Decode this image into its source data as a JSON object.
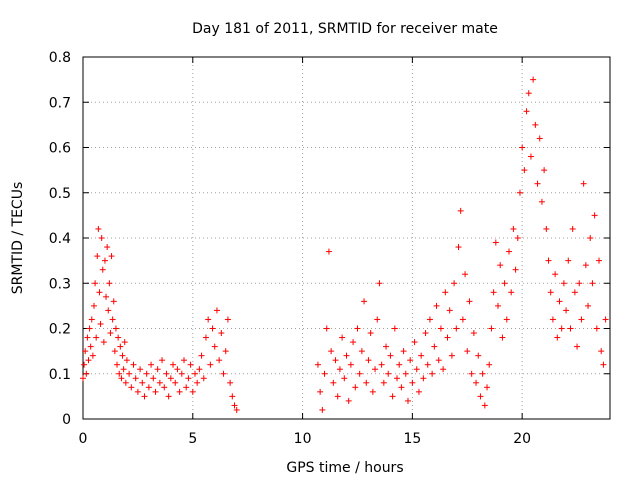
{
  "chart_data": {
    "type": "scatter",
    "title": "Day 181 of 2011, SRMTID for receiver mate",
    "xlabel": "GPS time / hours",
    "ylabel": "SRMTID / TECUs",
    "xlim": [
      0,
      24
    ],
    "ylim": [
      0,
      0.8
    ],
    "xticks": [
      0,
      5,
      10,
      15,
      20
    ],
    "xtick_labels": [
      "0",
      "5",
      "10",
      "15",
      "20"
    ],
    "yticks": [
      0,
      0.1,
      0.2,
      0.3,
      0.4,
      0.5,
      0.6,
      0.7,
      0.8
    ],
    "ytick_labels": [
      "0",
      "0.1",
      "0.2",
      "0.3",
      "0.4",
      "0.5",
      "0.6",
      "0.7",
      "0.8"
    ],
    "grid": true,
    "marker": "+",
    "color": "#ff0000",
    "series": [
      {
        "name": "SRMTID",
        "points": [
          [
            0.0,
            0.09
          ],
          [
            0.05,
            0.12
          ],
          [
            0.1,
            0.15
          ],
          [
            0.15,
            0.1
          ],
          [
            0.2,
            0.18
          ],
          [
            0.25,
            0.13
          ],
          [
            0.3,
            0.2
          ],
          [
            0.35,
            0.16
          ],
          [
            0.4,
            0.22
          ],
          [
            0.45,
            0.14
          ],
          [
            0.5,
            0.25
          ],
          [
            0.55,
            0.3
          ],
          [
            0.6,
            0.18
          ],
          [
            0.65,
            0.36
          ],
          [
            0.7,
            0.42
          ],
          [
            0.75,
            0.28
          ],
          [
            0.8,
            0.21
          ],
          [
            0.85,
            0.4
          ],
          [
            0.9,
            0.33
          ],
          [
            0.95,
            0.17
          ],
          [
            1.0,
            0.35
          ],
          [
            1.05,
            0.27
          ],
          [
            1.1,
            0.38
          ],
          [
            1.15,
            0.24
          ],
          [
            1.2,
            0.3
          ],
          [
            1.25,
            0.19
          ],
          [
            1.3,
            0.36
          ],
          [
            1.35,
            0.22
          ],
          [
            1.4,
            0.26
          ],
          [
            1.45,
            0.15
          ],
          [
            1.5,
            0.2
          ],
          [
            1.55,
            0.12
          ],
          [
            1.6,
            0.18
          ],
          [
            1.65,
            0.1
          ],
          [
            1.7,
            0.16
          ],
          [
            1.75,
            0.09
          ],
          [
            1.8,
            0.14
          ],
          [
            1.85,
            0.11
          ],
          [
            1.9,
            0.17
          ],
          [
            1.95,
            0.08
          ],
          [
            2.0,
            0.13
          ],
          [
            2.1,
            0.1
          ],
          [
            2.2,
            0.07
          ],
          [
            2.3,
            0.12
          ],
          [
            2.4,
            0.09
          ],
          [
            2.5,
            0.06
          ],
          [
            2.6,
            0.11
          ],
          [
            2.7,
            0.08
          ],
          [
            2.8,
            0.05
          ],
          [
            2.9,
            0.1
          ],
          [
            3.0,
            0.07
          ],
          [
            3.1,
            0.12
          ],
          [
            3.2,
            0.09
          ],
          [
            3.3,
            0.06
          ],
          [
            3.4,
            0.11
          ],
          [
            3.5,
            0.08
          ],
          [
            3.6,
            0.13
          ],
          [
            3.7,
            0.07
          ],
          [
            3.8,
            0.1
          ],
          [
            3.9,
            0.05
          ],
          [
            4.0,
            0.09
          ],
          [
            4.1,
            0.12
          ],
          [
            4.2,
            0.08
          ],
          [
            4.3,
            0.11
          ],
          [
            4.4,
            0.06
          ],
          [
            4.5,
            0.1
          ],
          [
            4.6,
            0.13
          ],
          [
            4.7,
            0.07
          ],
          [
            4.8,
            0.09
          ],
          [
            4.9,
            0.12
          ],
          [
            5.0,
            0.06
          ],
          [
            5.1,
            0.1
          ],
          [
            5.2,
            0.08
          ],
          [
            5.3,
            0.11
          ],
          [
            5.4,
            0.14
          ],
          [
            5.5,
            0.09
          ],
          [
            5.6,
            0.18
          ],
          [
            5.7,
            0.22
          ],
          [
            5.8,
            0.12
          ],
          [
            5.9,
            0.2
          ],
          [
            6.0,
            0.16
          ],
          [
            6.1,
            0.24
          ],
          [
            6.2,
            0.13
          ],
          [
            6.3,
            0.19
          ],
          [
            6.4,
            0.1
          ],
          [
            6.5,
            0.15
          ],
          [
            6.6,
            0.22
          ],
          [
            6.7,
            0.08
          ],
          [
            6.8,
            0.05
          ],
          [
            6.9,
            0.03
          ],
          [
            7.0,
            0.02
          ],
          [
            10.7,
            0.12
          ],
          [
            10.8,
            0.06
          ],
          [
            10.9,
            0.02
          ],
          [
            11.0,
            0.1
          ],
          [
            11.1,
            0.2
          ],
          [
            11.2,
            0.37
          ],
          [
            11.3,
            0.15
          ],
          [
            11.4,
            0.08
          ],
          [
            11.5,
            0.13
          ],
          [
            11.6,
            0.05
          ],
          [
            11.7,
            0.11
          ],
          [
            11.8,
            0.18
          ],
          [
            11.9,
            0.09
          ],
          [
            12.0,
            0.14
          ],
          [
            12.1,
            0.04
          ],
          [
            12.2,
            0.12
          ],
          [
            12.3,
            0.17
          ],
          [
            12.4,
            0.07
          ],
          [
            12.5,
            0.2
          ],
          [
            12.6,
            0.1
          ],
          [
            12.7,
            0.15
          ],
          [
            12.8,
            0.26
          ],
          [
            12.9,
            0.08
          ],
          [
            13.0,
            0.13
          ],
          [
            13.1,
            0.19
          ],
          [
            13.2,
            0.06
          ],
          [
            13.3,
            0.11
          ],
          [
            13.4,
            0.22
          ],
          [
            13.5,
            0.3
          ],
          [
            13.6,
            0.12
          ],
          [
            13.7,
            0.08
          ],
          [
            13.8,
            0.16
          ],
          [
            13.9,
            0.1
          ],
          [
            14.0,
            0.14
          ],
          [
            14.1,
            0.05
          ],
          [
            14.2,
            0.2
          ],
          [
            14.3,
            0.09
          ],
          [
            14.4,
            0.12
          ],
          [
            14.5,
            0.07
          ],
          [
            14.6,
            0.15
          ],
          [
            14.7,
            0.1
          ],
          [
            14.8,
            0.04
          ],
          [
            14.9,
            0.13
          ],
          [
            15.0,
            0.08
          ],
          [
            15.1,
            0.17
          ],
          [
            15.2,
            0.11
          ],
          [
            15.3,
            0.06
          ],
          [
            15.4,
            0.14
          ],
          [
            15.5,
            0.09
          ],
          [
            15.6,
            0.19
          ],
          [
            15.7,
            0.12
          ],
          [
            15.8,
            0.22
          ],
          [
            15.9,
            0.1
          ],
          [
            16.0,
            0.16
          ],
          [
            16.1,
            0.25
          ],
          [
            16.2,
            0.13
          ],
          [
            16.3,
            0.2
          ],
          [
            16.4,
            0.11
          ],
          [
            16.5,
            0.28
          ],
          [
            16.6,
            0.18
          ],
          [
            16.7,
            0.24
          ],
          [
            16.8,
            0.14
          ],
          [
            16.9,
            0.3
          ],
          [
            17.0,
            0.2
          ],
          [
            17.1,
            0.38
          ],
          [
            17.2,
            0.46
          ],
          [
            17.3,
            0.22
          ],
          [
            17.4,
            0.32
          ],
          [
            17.5,
            0.15
          ],
          [
            17.6,
            0.26
          ],
          [
            17.7,
            0.1
          ],
          [
            17.8,
            0.19
          ],
          [
            17.9,
            0.08
          ],
          [
            18.0,
            0.14
          ],
          [
            18.1,
            0.05
          ],
          [
            18.2,
            0.1
          ],
          [
            18.3,
            0.03
          ],
          [
            18.4,
            0.07
          ],
          [
            18.5,
            0.12
          ],
          [
            18.6,
            0.2
          ],
          [
            18.7,
            0.28
          ],
          [
            18.8,
            0.39
          ],
          [
            18.9,
            0.25
          ],
          [
            19.0,
            0.34
          ],
          [
            19.1,
            0.18
          ],
          [
            19.2,
            0.3
          ],
          [
            19.3,
            0.22
          ],
          [
            19.4,
            0.37
          ],
          [
            19.5,
            0.28
          ],
          [
            19.6,
            0.42
          ],
          [
            19.7,
            0.33
          ],
          [
            19.8,
            0.4
          ],
          [
            19.9,
            0.5
          ],
          [
            20.0,
            0.6
          ],
          [
            20.1,
            0.55
          ],
          [
            20.2,
            0.68
          ],
          [
            20.3,
            0.72
          ],
          [
            20.4,
            0.58
          ],
          [
            20.5,
            0.75
          ],
          [
            20.6,
            0.65
          ],
          [
            20.7,
            0.52
          ],
          [
            20.8,
            0.62
          ],
          [
            20.9,
            0.48
          ],
          [
            21.0,
            0.55
          ],
          [
            21.1,
            0.42
          ],
          [
            21.2,
            0.35
          ],
          [
            21.3,
            0.28
          ],
          [
            21.4,
            0.22
          ],
          [
            21.5,
            0.32
          ],
          [
            21.6,
            0.18
          ],
          [
            21.7,
            0.26
          ],
          [
            21.8,
            0.2
          ],
          [
            21.9,
            0.3
          ],
          [
            22.0,
            0.24
          ],
          [
            22.1,
            0.35
          ],
          [
            22.2,
            0.2
          ],
          [
            22.3,
            0.42
          ],
          [
            22.4,
            0.28
          ],
          [
            22.5,
            0.16
          ],
          [
            22.6,
            0.3
          ],
          [
            22.7,
            0.22
          ],
          [
            22.8,
            0.52
          ],
          [
            22.9,
            0.34
          ],
          [
            23.0,
            0.25
          ],
          [
            23.1,
            0.4
          ],
          [
            23.2,
            0.3
          ],
          [
            23.3,
            0.45
          ],
          [
            23.4,
            0.2
          ],
          [
            23.5,
            0.35
          ],
          [
            23.6,
            0.15
          ],
          [
            23.7,
            0.12
          ],
          [
            23.8,
            0.22
          ]
        ]
      }
    ]
  }
}
